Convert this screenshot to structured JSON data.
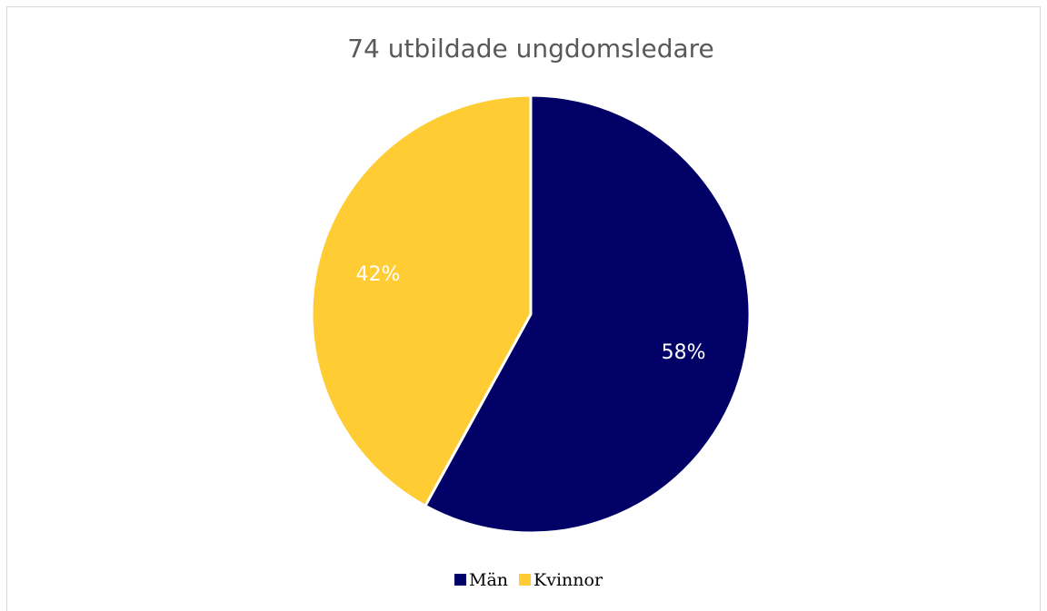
{
  "chart_data": {
    "type": "pie",
    "title": "74 utbildade ungdomsledare",
    "categories": [
      "Män",
      "Kvinnor"
    ],
    "values": [
      58,
      42
    ],
    "value_labels": [
      "58%",
      "42%"
    ],
    "colors": [
      "#000066",
      "#ffcc33"
    ],
    "legend": "bottom"
  }
}
